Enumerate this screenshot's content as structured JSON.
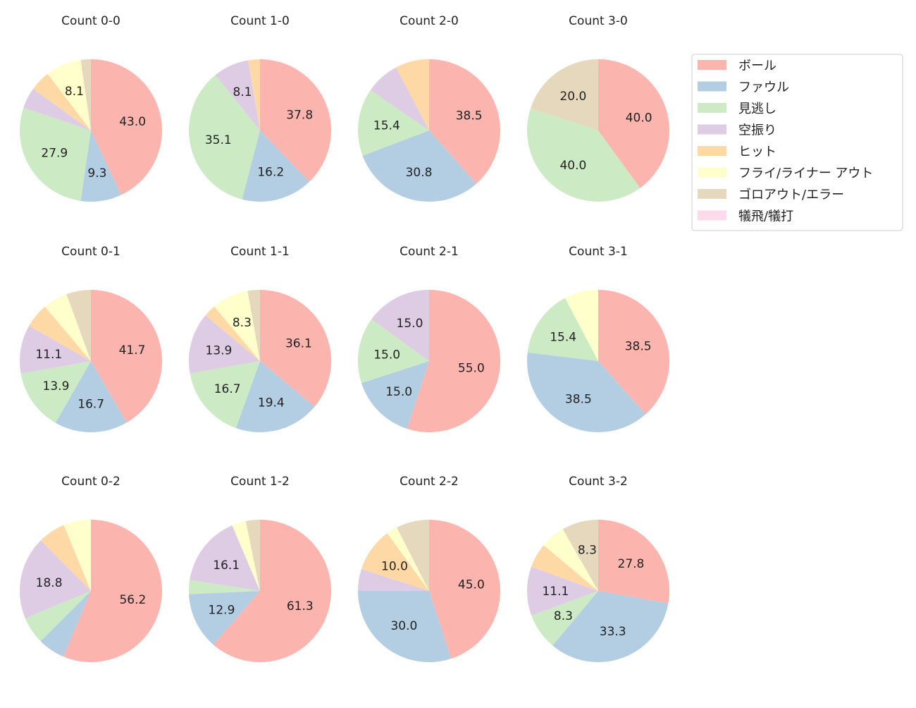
{
  "chart_data": {
    "type": "pie",
    "start_angle_deg": 90,
    "direction": "clockwise",
    "label_min_percent": 8,
    "legend": {
      "placement": "upper-right",
      "entries": [
        "ボール",
        "ファウル",
        "見逃し",
        "空振り",
        "ヒット",
        "フライ/ライナー アウト",
        "ゴロアウト/エラー",
        "犠飛/犠打"
      ]
    },
    "colors": [
      "#fbb4ae",
      "#b3cde3",
      "#ccebc5",
      "#decbe4",
      "#fed9a6",
      "#ffffcc",
      "#e5d8bd",
      "#fddaec"
    ],
    "pies": [
      {
        "title": "Count 0-0",
        "values": [
          43.0,
          9.3,
          27.9,
          4.7,
          4.7,
          8.1,
          2.3,
          0
        ]
      },
      {
        "title": "Count 1-0",
        "values": [
          37.8,
          16.2,
          35.1,
          8.1,
          2.7,
          0,
          0,
          0
        ]
      },
      {
        "title": "Count 2-0",
        "values": [
          38.5,
          30.8,
          15.4,
          7.7,
          7.7,
          0,
          0,
          0
        ]
      },
      {
        "title": "Count 3-0",
        "values": [
          40.0,
          0,
          40.0,
          0,
          0,
          0,
          20.0,
          0
        ]
      },
      {
        "title": "Count 0-1",
        "values": [
          41.7,
          16.7,
          13.9,
          11.1,
          5.6,
          5.6,
          5.6,
          0
        ]
      },
      {
        "title": "Count 1-1",
        "values": [
          36.1,
          19.4,
          16.7,
          13.9,
          2.8,
          8.3,
          2.8,
          0
        ]
      },
      {
        "title": "Count 2-1",
        "values": [
          55.0,
          15.0,
          15.0,
          15.0,
          0,
          0,
          0,
          0
        ]
      },
      {
        "title": "Count 3-1",
        "values": [
          38.5,
          38.5,
          15.4,
          0,
          0,
          7.7,
          0,
          0
        ]
      },
      {
        "title": "Count 0-2",
        "values": [
          56.2,
          6.2,
          6.2,
          18.8,
          6.2,
          6.2,
          0,
          0
        ]
      },
      {
        "title": "Count 1-2",
        "values": [
          61.3,
          12.9,
          3.2,
          16.1,
          0,
          3.2,
          3.2,
          0
        ]
      },
      {
        "title": "Count 2-2",
        "values": [
          45.0,
          30.0,
          0,
          5.0,
          10.0,
          2.5,
          7.5,
          0
        ]
      },
      {
        "title": "Count 3-2",
        "values": [
          27.8,
          33.3,
          8.3,
          11.1,
          5.6,
          5.6,
          8.3,
          0
        ]
      }
    ]
  }
}
